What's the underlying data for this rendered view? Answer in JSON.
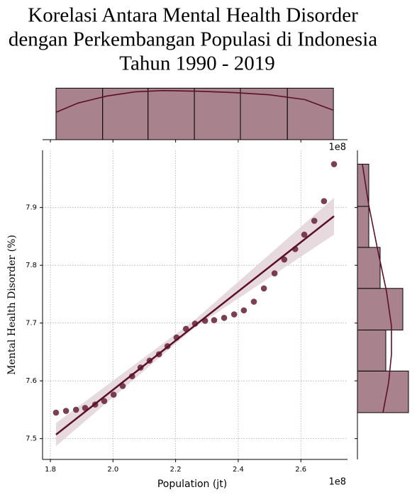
{
  "chart_data": {
    "type": "scatter",
    "title": [
      "Korelasi Antara Mental Health Disorder",
      "dengan Perkembangan Populasi di Indonesia",
      "Tahun 1990 - 2019"
    ],
    "xlabel": "Population (jt)",
    "ylabel": "Mental Health Disorder (%)",
    "x_offset": "1e8",
    "y_offset": "1e8",
    "x": [
      1.818,
      1.85,
      1.882,
      1.911,
      1.943,
      1.972,
      2.002,
      2.031,
      2.061,
      2.088,
      2.117,
      2.147,
      2.174,
      2.203,
      2.233,
      2.262,
      2.294,
      2.323,
      2.355,
      2.387,
      2.418,
      2.45,
      2.482,
      2.516,
      2.547,
      2.582,
      2.611,
      2.643,
      2.674,
      2.706
    ],
    "values": [
      7.545,
      7.548,
      7.55,
      7.553,
      7.559,
      7.565,
      7.576,
      7.591,
      7.608,
      7.623,
      7.635,
      7.646,
      7.66,
      7.675,
      7.69,
      7.699,
      7.704,
      7.705,
      7.709,
      7.715,
      7.722,
      7.737,
      7.76,
      7.786,
      7.81,
      7.828,
      7.853,
      7.877,
      7.911,
      7.975
    ],
    "color": "#6b2a3e",
    "xlim": [
      1.775,
      2.749
    ],
    "ylim": [
      7.464,
      7.999
    ],
    "xticks": [
      1.8,
      {
        "value": 2,
        "label": "2.0"
      },
      2.2,
      2.4,
      2.6
    ],
    "yticks": [
      7.5,
      7.6,
      7.7,
      7.8,
      7.9
    ],
    "grid": true,
    "regression": {
      "x": [
        1.818,
        2.706
      ],
      "y": [
        7.507,
        7.885
      ],
      "color": "#5c0f2a"
    },
    "ci": {
      "x": [
        1.818,
        2.26,
        2.706
      ],
      "lower": [
        7.487,
        7.692,
        7.853
      ],
      "upper": [
        7.527,
        7.705,
        7.917
      ],
      "color": "#e3d3d8"
    },
    "top_hist": {
      "bins": [
        1.818,
        1.967,
        2.112,
        2.26,
        2.407,
        2.557,
        2.704
      ],
      "counts": [
        5,
        5,
        5,
        5,
        5,
        5
      ],
      "color": "#a8838d",
      "ylim": [
        0,
        5.3
      ],
      "kde": {
        "x": [
          1.818,
          1.888,
          1.979,
          2.07,
          2.16,
          2.273,
          2.386,
          2.5,
          2.613,
          2.704
        ],
        "y": [
          2.66,
          3.55,
          4.23,
          4.64,
          4.77,
          4.7,
          4.57,
          4.36,
          3.89,
          2.86
        ]
      }
    },
    "right_hist": {
      "bins": [
        7.545,
        7.617,
        7.688,
        7.76,
        7.831,
        7.902,
        7.975
      ],
      "counts": [
        9,
        5,
        8,
        4,
        2,
        2
      ],
      "color": "#a8838d",
      "xlim": [
        0,
        9.5
      ],
      "kde": {
        "y": [
          7.545,
          7.597,
          7.646,
          7.695,
          7.756,
          7.83,
          7.904,
          7.975
        ],
        "x": [
          4.5,
          5.5,
          6,
          6,
          5.1,
          3.5,
          2,
          0.875
        ]
      }
    }
  }
}
